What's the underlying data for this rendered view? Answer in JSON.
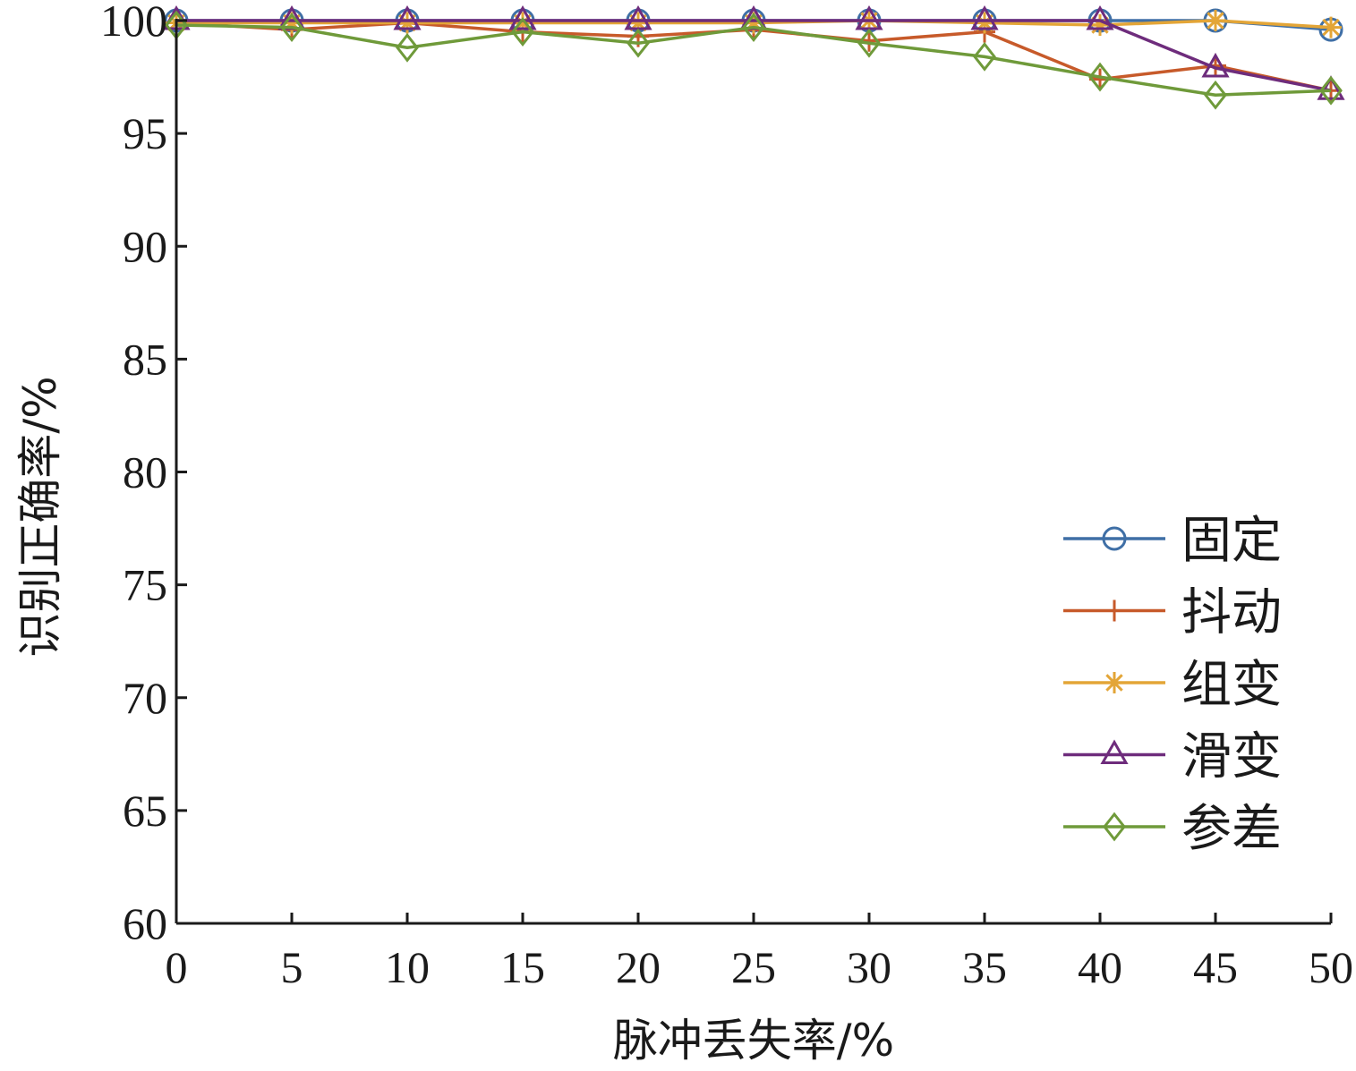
{
  "chart_data": {
    "type": "line",
    "title": "",
    "xlabel": "脉冲丢失率/%",
    "ylabel": "识别正确率/%",
    "x": [
      0,
      5,
      10,
      15,
      20,
      25,
      30,
      35,
      40,
      45,
      50
    ],
    "xlim": [
      0,
      50
    ],
    "ylim": [
      60,
      100
    ],
    "xticks": [
      "0",
      "5",
      "10",
      "15",
      "20",
      "25",
      "30",
      "35",
      "40",
      "45",
      "50"
    ],
    "yticks": [
      "60",
      "65",
      "70",
      "75",
      "80",
      "85",
      "90",
      "95",
      "100"
    ],
    "grid": false,
    "legend_position": "right",
    "series": [
      {
        "name": "固定",
        "color": "#3f6fa6",
        "marker": "circle",
        "values": [
          100,
          100,
          100,
          100,
          100,
          100,
          100,
          100,
          100,
          100,
          99.6
        ]
      },
      {
        "name": "抖动",
        "color": "#c75a2a",
        "marker": "plus",
        "values": [
          99.9,
          99.6,
          99.9,
          99.5,
          99.3,
          99.6,
          99.1,
          99.5,
          97.4,
          98.0,
          96.9
        ]
      },
      {
        "name": "组变",
        "color": "#e3a537",
        "marker": "asterisk",
        "values": [
          99.9,
          99.9,
          99.9,
          99.9,
          99.9,
          99.9,
          100,
          99.9,
          99.8,
          100,
          99.7
        ]
      },
      {
        "name": "滑变",
        "color": "#6e2c7c",
        "marker": "triangle",
        "values": [
          100,
          100,
          100,
          100,
          100,
          100,
          100,
          100,
          100,
          97.9,
          96.9
        ]
      },
      {
        "name": "参差",
        "color": "#6f9a3a",
        "marker": "diamond",
        "values": [
          99.8,
          99.7,
          98.8,
          99.5,
          99.0,
          99.7,
          99.0,
          98.4,
          97.5,
          96.7,
          96.9
        ]
      }
    ]
  }
}
